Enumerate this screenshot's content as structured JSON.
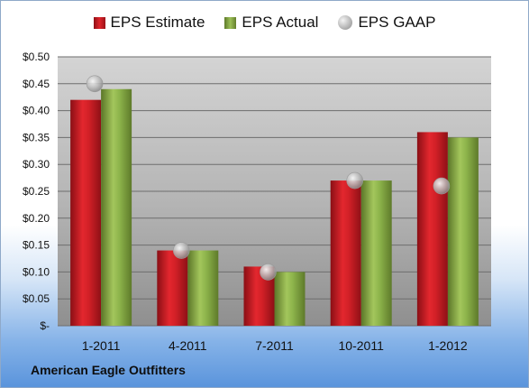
{
  "chart_data": {
    "type": "bar",
    "categories": [
      "1-2011",
      "4-2011",
      "7-2011",
      "10-2011",
      "1-2012"
    ],
    "series": [
      {
        "name": "EPS Estimate",
        "values": [
          0.42,
          0.14,
          0.11,
          0.27,
          0.36
        ],
        "color": "#d42027"
      },
      {
        "name": "EPS Actual",
        "values": [
          0.44,
          0.14,
          0.1,
          0.27,
          0.35
        ],
        "color": "#8db44b"
      },
      {
        "name": "EPS GAAP",
        "values": [
          0.45,
          0.14,
          0.1,
          0.27,
          0.26
        ],
        "color": "#b8b8b8",
        "marker": "circle"
      }
    ],
    "y_ticks": [
      "$-",
      "$0.05",
      "$0.10",
      "$0.15",
      "$0.20",
      "$0.25",
      "$0.30",
      "$0.35",
      "$0.40",
      "$0.45",
      "$0.50"
    ],
    "ylim": [
      0,
      0.5
    ],
    "grid": true,
    "legend_position": "top"
  },
  "footer": {
    "company": "American Eagle Outfitters"
  }
}
